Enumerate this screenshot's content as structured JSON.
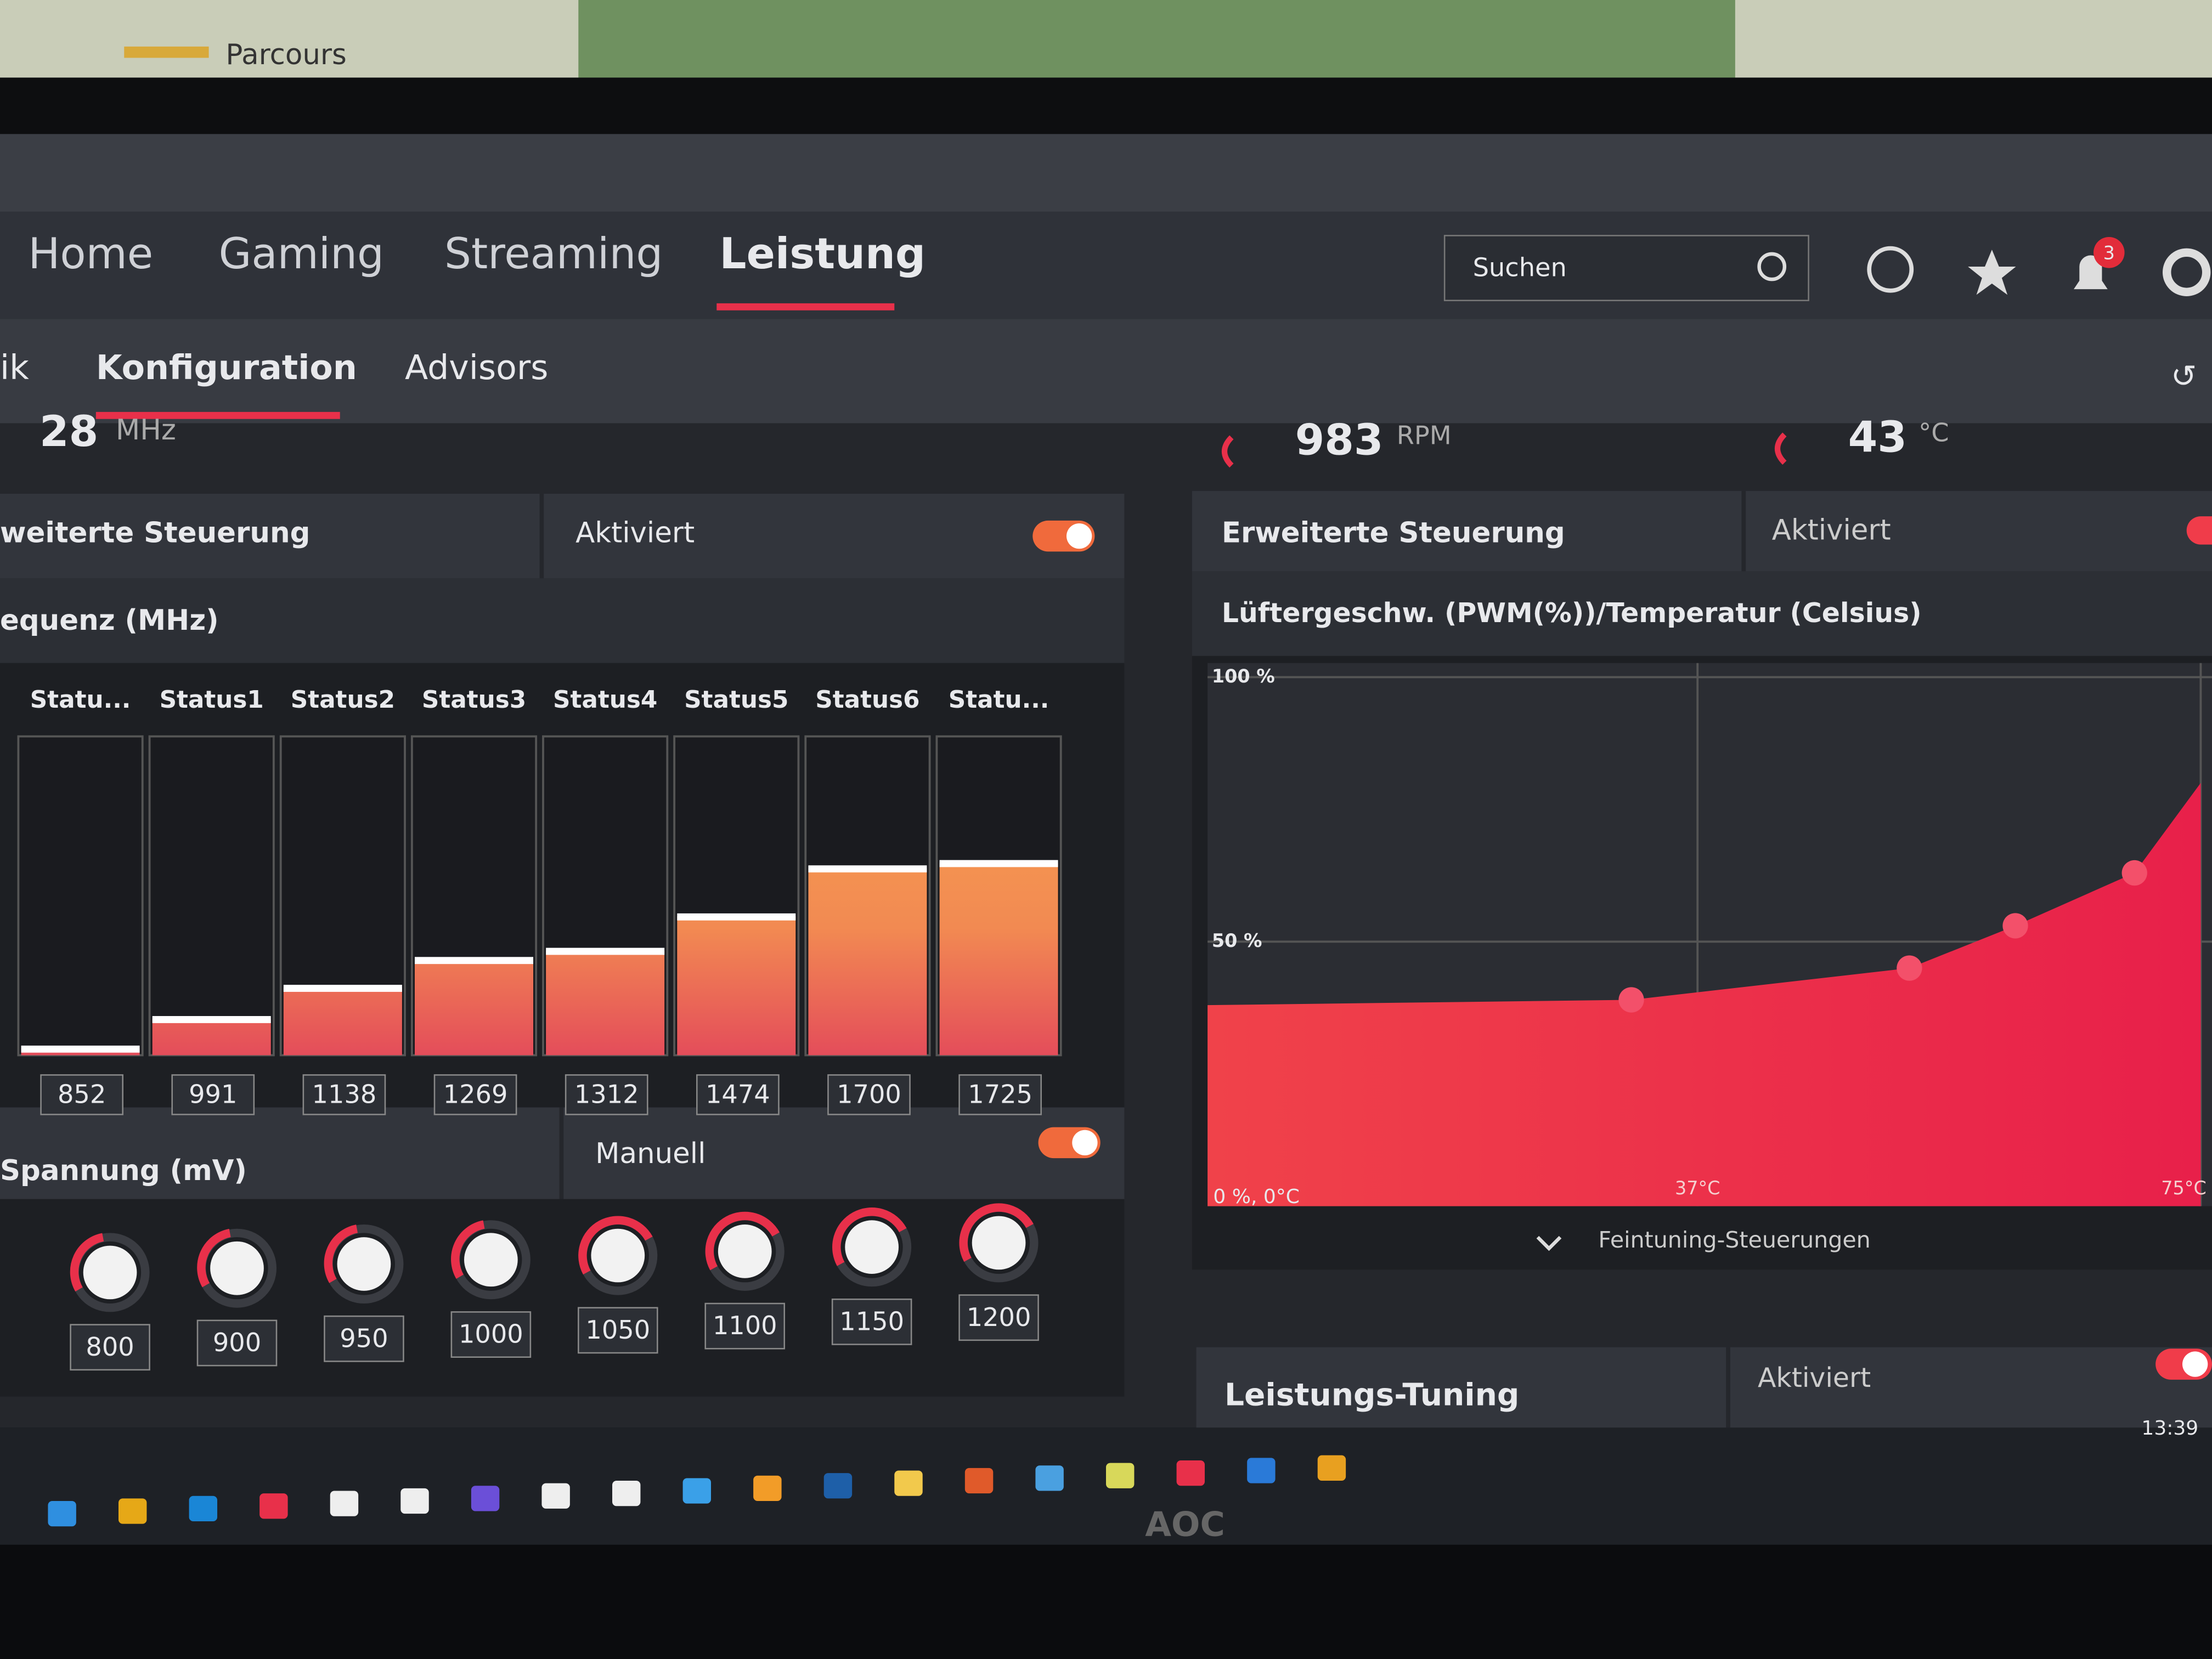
{
  "map": {
    "label": "Parcours"
  },
  "nav": {
    "tabs": [
      "Home",
      "Gaming",
      "Streaming",
      "Leistung"
    ],
    "search": "Suchen",
    "notifications": 3
  },
  "subnav": {
    "tabs": [
      "ik",
      "Konfiguration",
      "Advisors"
    ]
  },
  "gpu": {
    "clock": "28",
    "clock_unit": "MHz",
    "advanced_label": "weiterte Steuerung",
    "advanced_state": "Aktiviert",
    "freq_title": "equenz (MHz)",
    "states": [
      "Statu...",
      "Status1",
      "Status2",
      "Status3",
      "Status4",
      "Status5",
      "Status6",
      "Statu..."
    ],
    "frequencies": [
      852,
      991,
      1138,
      1269,
      1312,
      1474,
      1700,
      1725
    ],
    "ylim": [
      820,
      2320
    ],
    "voltage_title": "Spannung (mV)",
    "voltage_mode": "Manuell",
    "voltages": [
      800,
      900,
      950,
      1000,
      1050,
      1100,
      1150,
      1200
    ]
  },
  "fan": {
    "rpm": "983",
    "rpm_unit": "RPM",
    "temp": "43",
    "temp_unit": "°C",
    "advanced_label": "Erweiterte Steuerung",
    "advanced_state": "Aktiviert",
    "chart_title": "Lüftergeschw. (PWM(%))/Temperatur (Celsius)",
    "curve": {
      "xlim": [
        0,
        75
      ],
      "ylim": [
        0,
        100
      ],
      "yticks": [
        {
          "value": 100,
          "label": "100 %"
        },
        {
          "value": 50,
          "label": "50 %"
        }
      ],
      "origin_label": "0 %, 0°C",
      "xticks": [
        {
          "value": 37,
          "label": "37°C"
        },
        {
          "value": 75,
          "label": "75°C"
        }
      ],
      "x": [
        0,
        32,
        53,
        61,
        70,
        75
      ],
      "y": [
        38,
        39,
        45,
        53,
        63,
        80
      ]
    },
    "fine_tuning": "Feintuning-Steuerungen"
  },
  "tuning": {
    "title": "Leistungs-Tuning",
    "state": "Aktiviert"
  },
  "taskbar": {
    "time": "13:39"
  },
  "brand": "AOC"
}
